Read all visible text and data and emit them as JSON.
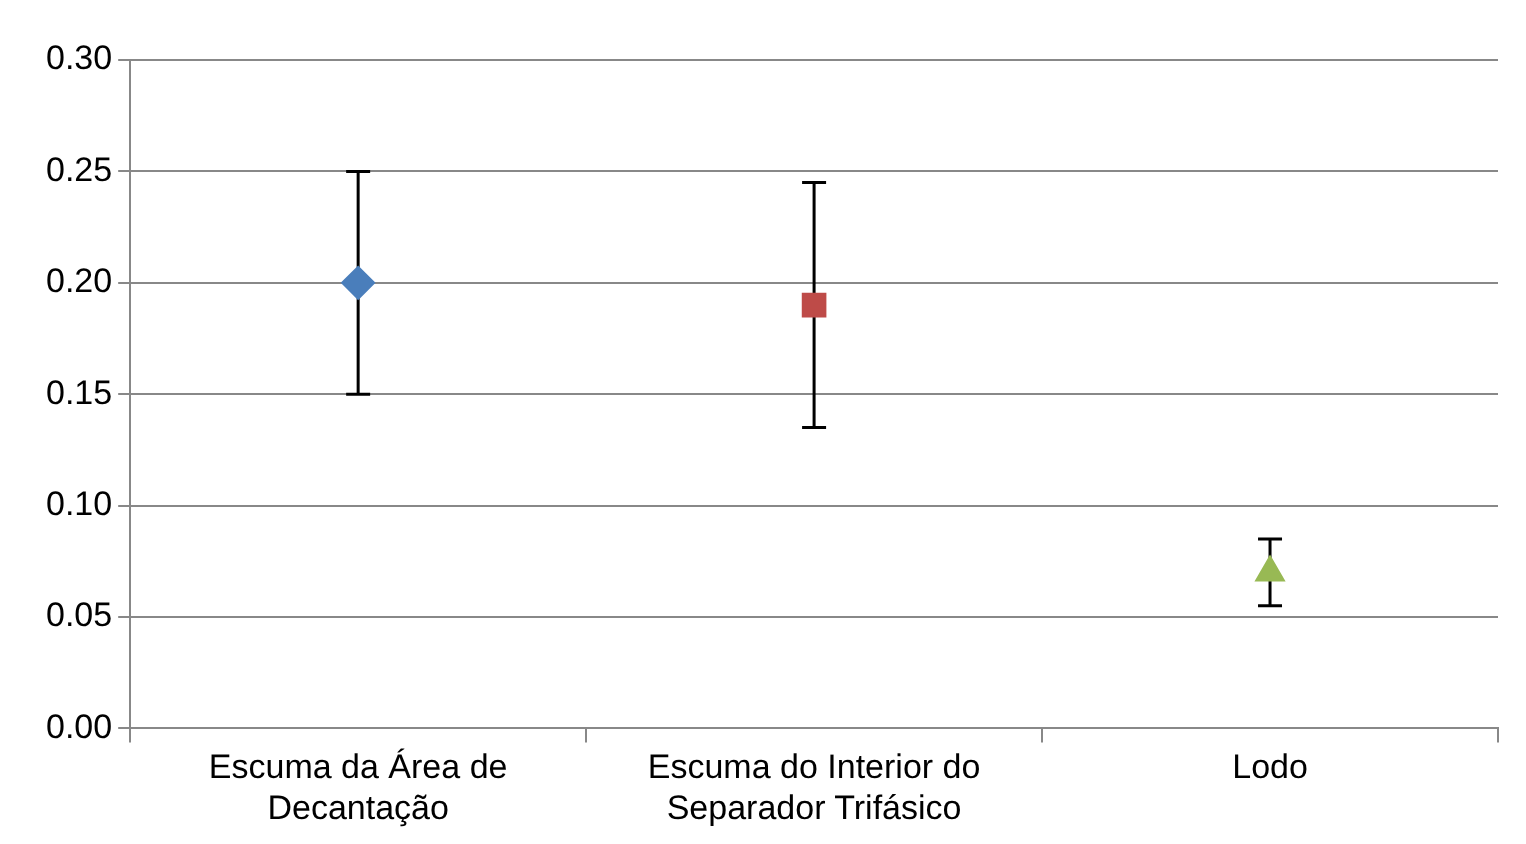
{
  "chart_data": {
    "type": "scatter",
    "categories": [
      "Escuma da Área de Decantação",
      "Escuma do Interior do Separador Trifásico",
      "Lodo"
    ],
    "series": [
      {
        "color": "#4a7ebb",
        "marker": "diamond",
        "values": [
          0.2,
          null,
          null
        ],
        "errors": [
          0.05,
          null,
          null
        ]
      },
      {
        "color": "#be4b48",
        "marker": "square",
        "values": [
          null,
          0.19,
          null
        ],
        "errors": [
          null,
          0.055,
          null
        ]
      },
      {
        "color": "#98b954",
        "marker": "triangle",
        "values": [
          null,
          null,
          0.07
        ],
        "errors": [
          null,
          null,
          0.015
        ]
      }
    ],
    "ylim": [
      0,
      0.3
    ],
    "yticks": [
      {
        "value": 0,
        "label": "0.00"
      },
      {
        "value": 0.05,
        "label": "0.05"
      },
      {
        "value": 0.1,
        "label": "0.10"
      },
      {
        "value": 0.15,
        "label": "0.15"
      },
      {
        "value": 0.2,
        "label": "0.20"
      },
      {
        "value": 0.25,
        "label": "0.25"
      },
      {
        "value": 0.3,
        "label": "0.30"
      }
    ],
    "grid": "y",
    "legend": false
  }
}
